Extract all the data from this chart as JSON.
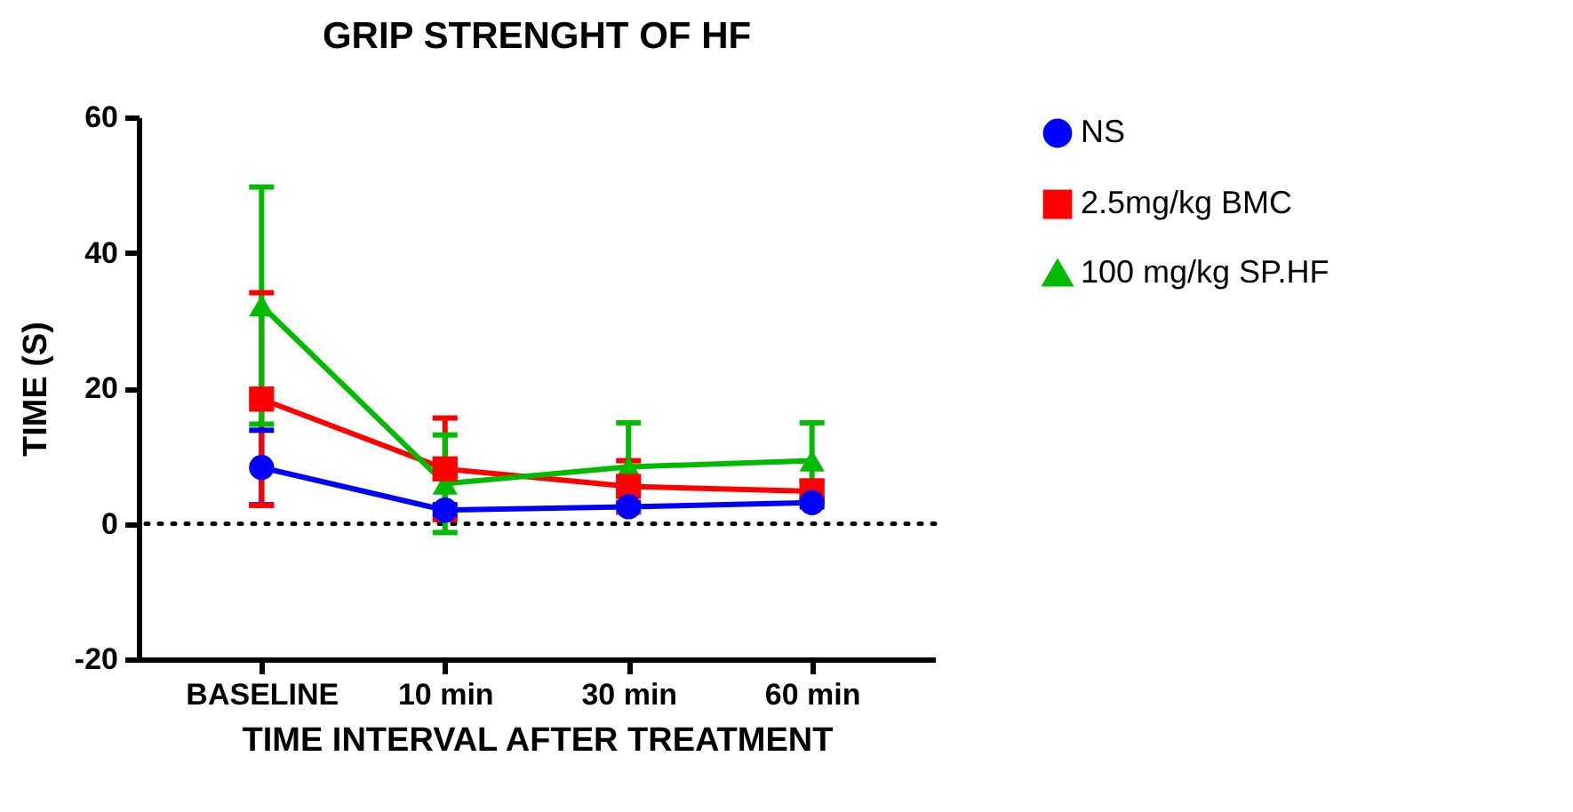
{
  "chart_data": {
    "type": "line",
    "title": "GRIP STRENGHT OF HF",
    "xlabel": "TIME INTERVAL AFTER TREATMENT",
    "ylabel": "TIME (S)",
    "categories": [
      "BASELINE",
      "10 min",
      "30 min",
      "60 min"
    ],
    "series": [
      {
        "name": "NS",
        "color": "#0000ff",
        "marker": "circle",
        "values": [
          8.3,
          2.0,
          2.5,
          3.1
        ],
        "errors": [
          5.5,
          0.8,
          0.6,
          0.6
        ]
      },
      {
        "name": "2.5mg/kg BMC",
        "color": "#ff0000",
        "marker": "square",
        "values": [
          18.4,
          8.1,
          5.5,
          4.8
        ],
        "errors": [
          15.7,
          7.5,
          3.8,
          1.5
        ]
      },
      {
        "name": "100 mg/kg SP.HF",
        "color": "#00bb00",
        "marker": "triangle",
        "values": [
          32.2,
          5.9,
          8.4,
          9.3
        ],
        "errors": [
          17.5,
          7.2,
          6.5,
          5.6
        ]
      }
    ],
    "ylim": [
      -20,
      60
    ],
    "yticks": [
      -20,
      0,
      20,
      40,
      60
    ],
    "grid": false,
    "legend": "top right",
    "line_style": "solid",
    "ref_lines": [
      {
        "axis": "y",
        "value": 0,
        "line_style": "dotted",
        "color": "#000000"
      }
    ]
  }
}
